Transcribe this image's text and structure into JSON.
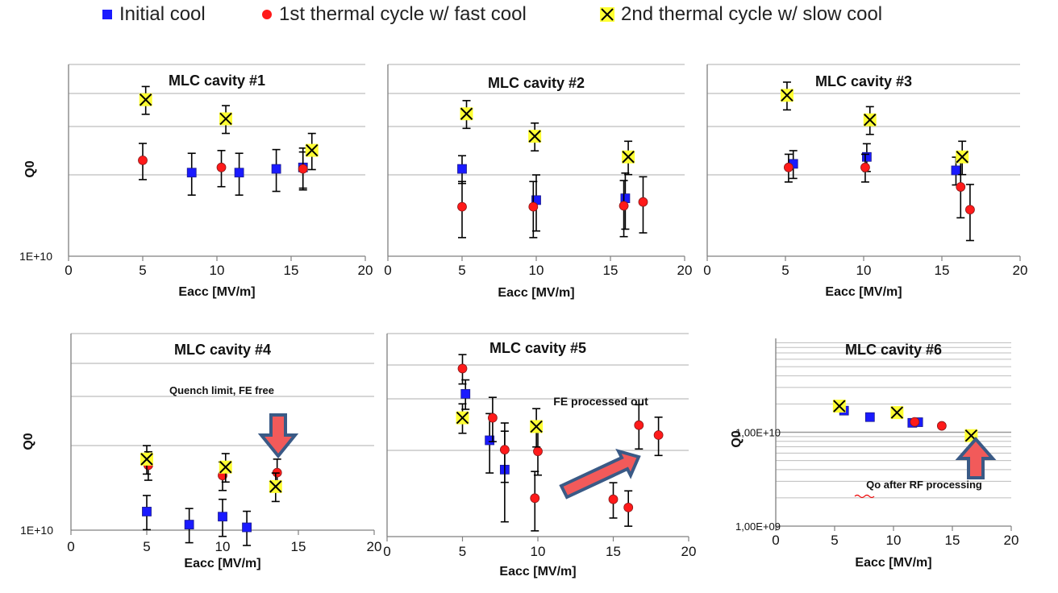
{
  "legend": {
    "items": [
      {
        "label": "Initial cool",
        "color": "#1a1aff",
        "marker": "square-icon"
      },
      {
        "label": "1st thermal cycle w/ fast cool",
        "color": "#ff1a1a",
        "marker": "circle-icon"
      },
      {
        "label": "2nd thermal cycle w/ slow cool",
        "color": "#ffff33",
        "marker": "x-marker-icon"
      }
    ]
  },
  "chart_data": [
    {
      "type": "scatter",
      "title": "MLC cavity #1",
      "xlabel": "Eacc [MV/m]",
      "ylabel": "Q0",
      "xlim": [
        0,
        20
      ],
      "ylim": [
        10000000000.0,
        40000000000.0
      ],
      "yscale": "log",
      "xticks": [
        "0",
        "5",
        "10",
        "15",
        "20"
      ],
      "yticks": [
        "1E+10"
      ],
      "series": [
        {
          "name": "Initial cool",
          "x": [
            8.3,
            11.5,
            14.0,
            15.8
          ],
          "y": [
            18300000000.0,
            18300000000.0,
            18800000000.0,
            19000000000.0
          ],
          "err": [
            0.15,
            0.15,
            0.15,
            0.15
          ]
        },
        {
          "name": "1st thermal cycle w/ fast cool",
          "x": [
            5.0,
            10.3,
            15.8
          ],
          "y": [
            20000000000.0,
            19000000000.0,
            18800000000.0
          ],
          "err": [
            0.13,
            0.13,
            0.13
          ]
        },
        {
          "name": "2nd thermal cycle w/ slow cool",
          "x": [
            5.2,
            10.6,
            16.4
          ],
          "y": [
            31000000000.0,
            27000000000.0,
            21500000000.0
          ],
          "err": [
            0.1,
            0.1,
            0.13
          ]
        }
      ]
    },
    {
      "type": "scatter",
      "title": "MLC cavity #2",
      "xlabel": "Eacc [MV/m]",
      "ylabel": "",
      "xlim": [
        0,
        20
      ],
      "ylim": [
        10000000000.0,
        40000000000.0
      ],
      "yscale": "log",
      "xticks": [
        "0",
        "5",
        "10",
        "15",
        "20"
      ],
      "yticks": [],
      "series": [
        {
          "name": "Initial cool",
          "x": [
            5.0,
            10.0,
            16.0
          ],
          "y": [
            18800000000.0,
            15000000000.0,
            15200000000.0
          ],
          "err": [
            0.1,
            0.2,
            0.2
          ]
        },
        {
          "name": "1st thermal cycle w/ fast cool",
          "x": [
            5.0,
            9.8,
            15.9,
            17.2
          ],
          "y": [
            14300000000.0,
            14300000000.0,
            14400000000.0,
            14800000000.0
          ],
          "err": [
            0.2,
            0.2,
            0.2,
            0.2
          ]
        },
        {
          "name": "2nd thermal cycle w/ slow cool",
          "x": [
            5.3,
            9.9,
            16.2
          ],
          "y": [
            28000000000.0,
            23800000000.0,
            20500000000.0
          ],
          "err": [
            0.1,
            0.1,
            0.12
          ]
        }
      ]
    },
    {
      "type": "scatter",
      "title": "MLC cavity #3",
      "xlabel": "Eacc [MV/m]",
      "ylabel": "",
      "xlim": [
        0,
        20
      ],
      "ylim": [
        10000000000.0,
        40000000000.0
      ],
      "yscale": "log",
      "xticks": [
        "0",
        "5",
        "10",
        "15",
        "20"
      ],
      "yticks": [],
      "series": [
        {
          "name": "Initial cool",
          "x": [
            5.5,
            10.2,
            15.9
          ],
          "y": [
            19500000000.0,
            20500000000.0,
            18600000000.0
          ],
          "err": [
            0.1,
            0.1,
            0.1
          ]
        },
        {
          "name": "1st thermal cycle w/ fast cool",
          "x": [
            5.2,
            10.1,
            16.2,
            16.8
          ],
          "y": [
            19000000000.0,
            19000000000.0,
            16500000000.0,
            14000000000.0
          ],
          "err": [
            0.1,
            0.1,
            0.2,
            0.2
          ]
        },
        {
          "name": "2nd thermal cycle w/ slow cool",
          "x": [
            5.1,
            10.4,
            16.3
          ],
          "y": [
            32000000000.0,
            26800000000.0,
            20500000000.0
          ],
          "err": [
            0.1,
            0.1,
            0.12
          ]
        }
      ]
    },
    {
      "type": "scatter",
      "title": "MLC cavity #4",
      "xlabel": "Eacc [MV/m]",
      "ylabel": "Q0",
      "xlim": [
        0,
        20
      ],
      "ylim": [
        10000000000.0,
        40000000000.0
      ],
      "yscale": "log",
      "xticks": [
        "0",
        "5",
        "10",
        "15",
        "20"
      ],
      "yticks": [
        "1E+10"
      ],
      "annotation": "Quench limit, FE free",
      "series": [
        {
          "name": "Initial cool",
          "x": [
            5.0,
            7.8,
            10.0,
            11.6
          ],
          "y": [
            11400000000.0,
            10400000000.0,
            11000000000.0,
            10200000000.0
          ],
          "err": [
            0.12,
            0.12,
            0.13,
            0.12
          ]
        },
        {
          "name": "1st thermal cycle w/ fast cool",
          "x": [
            5.1,
            10.0,
            13.6
          ],
          "y": [
            15800000000.0,
            14700000000.0,
            15000000000.0
          ],
          "err": [
            0.1,
            0.1,
            0.1
          ]
        },
        {
          "name": "2nd thermal cycle w/ slow cool",
          "x": [
            5.0,
            10.2,
            13.5
          ],
          "y": [
            16500000000.0,
            15600000000.0,
            13600000000.0
          ],
          "err": [
            0.1,
            0.1,
            0.1
          ]
        }
      ]
    },
    {
      "type": "scatter",
      "title": "MLC cavity #5",
      "xlabel": "Eacc [MV/m]",
      "ylabel": "",
      "xlim": [
        0,
        20
      ],
      "ylim": [
        10000000000.0,
        40000000000.0
      ],
      "yscale": "log",
      "xticks": [
        "0",
        "5",
        "10",
        "15",
        "20"
      ],
      "yticks": [],
      "annotation": "FE processed out",
      "series": [
        {
          "name": "Initial cool",
          "x": [
            5.2,
            6.8,
            7.8
          ],
          "y": [
            26500000000.0,
            19300000000.0,
            15800000000.0
          ],
          "err": [
            0.1,
            0.2,
            0.3
          ]
        },
        {
          "name": "1st thermal cycle w/ fast cool",
          "x": [
            5.0,
            7.0,
            7.8,
            9.8,
            10.0,
            15.0,
            16.0,
            16.7,
            18.0
          ],
          "y": [
            31500000000.0,
            22500000000.0,
            18100000000.0,
            13000000000.0,
            17900000000.0,
            12900000000.0,
            12200000000.0,
            21400000000.0,
            20000000000.0
          ],
          "err": [
            0.1,
            0.15,
            0.2,
            0.2,
            0.15,
            0.12,
            0.12,
            0.15,
            0.13
          ]
        },
        {
          "name": "2nd thermal cycle w/ slow cool",
          "x": [
            5.0,
            9.9
          ],
          "y": [
            22500000000.0,
            21200000000.0
          ],
          "err": [
            0.1,
            0.13
          ]
        }
      ]
    },
    {
      "type": "scatter",
      "title": "MLC cavity #6",
      "xlabel": "Eacc [MV/m]",
      "ylabel": "Q0",
      "xlim": [
        0,
        20
      ],
      "ylim": [
        1000000000.0,
        100000000000.0
      ],
      "yscale": "log",
      "xticks": [
        "0",
        "5",
        "10",
        "15",
        "20"
      ],
      "yticks": [
        "1,00E+09",
        "1,00E+10"
      ],
      "annotation": "Qo after RF processing",
      "series": [
        {
          "name": "Initial cool",
          "x": [
            5.8,
            8.0,
            11.6,
            12.1
          ],
          "y": [
            17000000000.0,
            14500000000.0,
            12600000000.0,
            12800000000.0
          ],
          "err": [
            0.06,
            0.06,
            0.06,
            0.06
          ]
        },
        {
          "name": "1st thermal cycle w/ fast cool",
          "x": [
            11.8,
            14.1
          ],
          "y": [
            12900000000.0,
            11700000000.0
          ],
          "err": [
            0.05,
            0.05
          ]
        },
        {
          "name": "2nd thermal cycle w/ slow cool",
          "x": [
            5.4,
            10.3,
            16.6
          ],
          "y": [
            19000000000.0,
            16200000000.0,
            9200000000.0
          ],
          "err": [
            0.05,
            0.05,
            0.05
          ]
        }
      ]
    }
  ]
}
